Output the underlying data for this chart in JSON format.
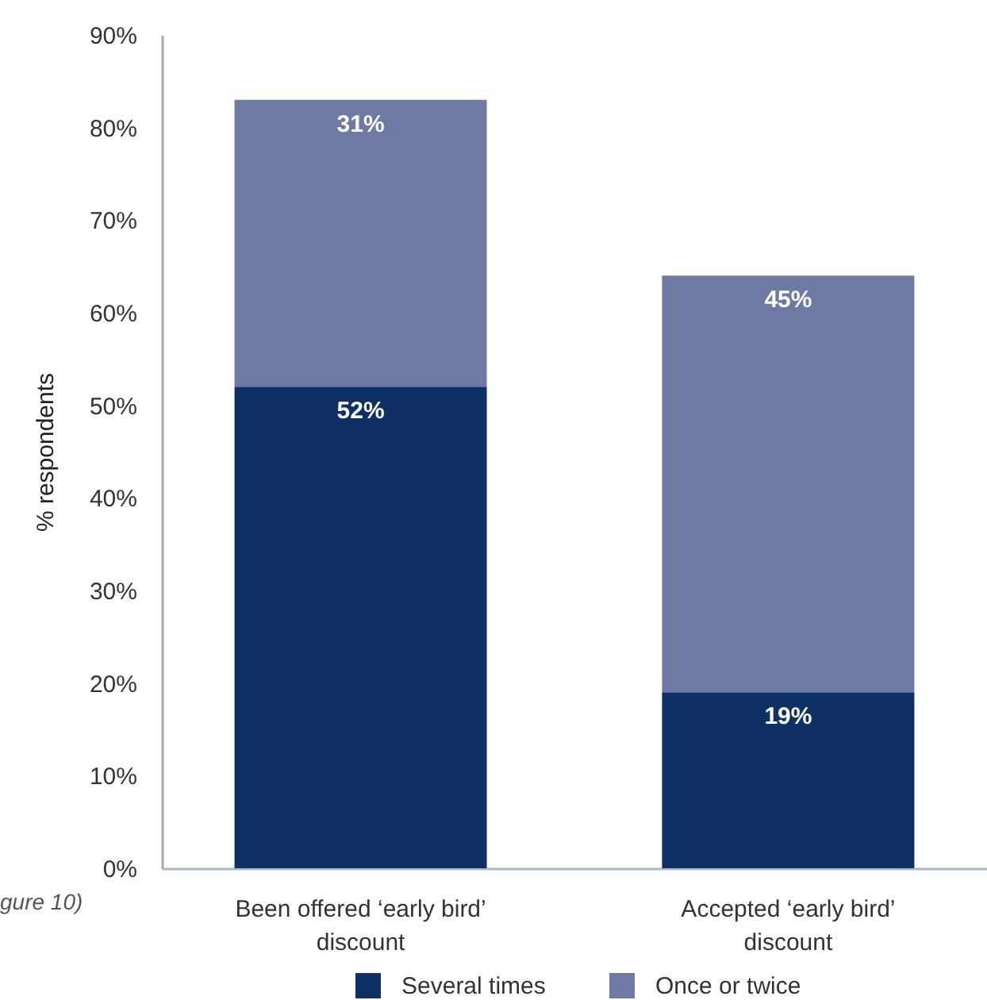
{
  "chart_data": {
    "type": "bar",
    "stacked": true,
    "ylabel": "% respondents",
    "categories": [
      "Been offered ‘early bird’ discount",
      "Accepted ‘early bird’ discount"
    ],
    "series": [
      {
        "name": "Several times",
        "color": "#0f3064",
        "values": [
          52,
          19
        ],
        "value_labels": [
          "52%",
          "19%"
        ]
      },
      {
        "name": "Once or twice",
        "color": "#6e7aa3",
        "values": [
          31,
          45
        ],
        "value_labels": [
          "31%",
          "45%"
        ]
      }
    ],
    "ylim": [
      0,
      90
    ],
    "yticks": [
      {
        "value": 0,
        "label": "0%"
      },
      {
        "value": 10,
        "label": "10%"
      },
      {
        "value": 20,
        "label": "20%"
      },
      {
        "value": 30,
        "label": "30%"
      },
      {
        "value": 40,
        "label": "40%"
      },
      {
        "value": 50,
        "label": "50%"
      },
      {
        "value": 60,
        "label": "60%"
      },
      {
        "value": 70,
        "label": "70%"
      },
      {
        "value": 80,
        "label": "80%"
      },
      {
        "value": 90,
        "label": "90%"
      }
    ],
    "legend": "bottom",
    "annotations": [
      "gure 10)"
    ]
  }
}
